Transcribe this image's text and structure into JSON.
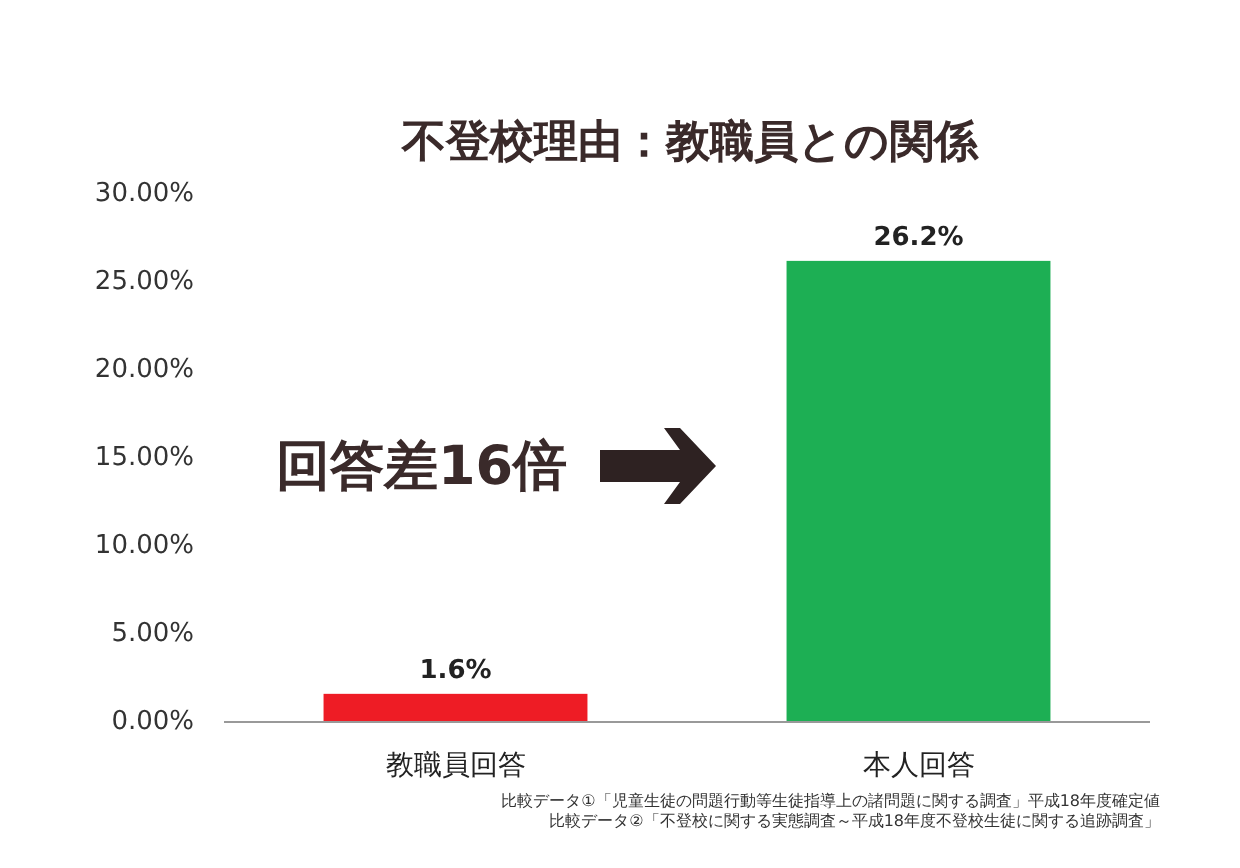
{
  "chart_data": {
    "type": "bar",
    "title": "不登校理由：教職員との関係",
    "categories": [
      "教職員回答",
      "本人回答"
    ],
    "values": [
      1.6,
      26.2
    ],
    "colors": [
      "#ee1c25",
      "#1daf54"
    ],
    "value_labels": [
      "1.6%",
      "26.2%"
    ],
    "ylim": [
      0,
      30
    ],
    "yticks": [
      {
        "value": 0,
        "label": "0.00%"
      },
      {
        "value": 5,
        "label": "5.00%"
      },
      {
        "value": 10,
        "label": "10.00%"
      },
      {
        "value": 15,
        "label": "15.00%"
      },
      {
        "value": 20,
        "label": "20.00%"
      },
      {
        "value": 25,
        "label": "25.00%"
      },
      {
        "value": 30,
        "label": "30.00%"
      }
    ],
    "grid": false,
    "annotations": [
      "回答差16倍",
      "比較データ①「児童生徒の問題行動等生徒指導上の諸問題に関する調査」平成18年度確定値",
      "比較データ②「不登校に関する実態調査～平成18年度不登校生徒に関する追跡調査」"
    ]
  }
}
